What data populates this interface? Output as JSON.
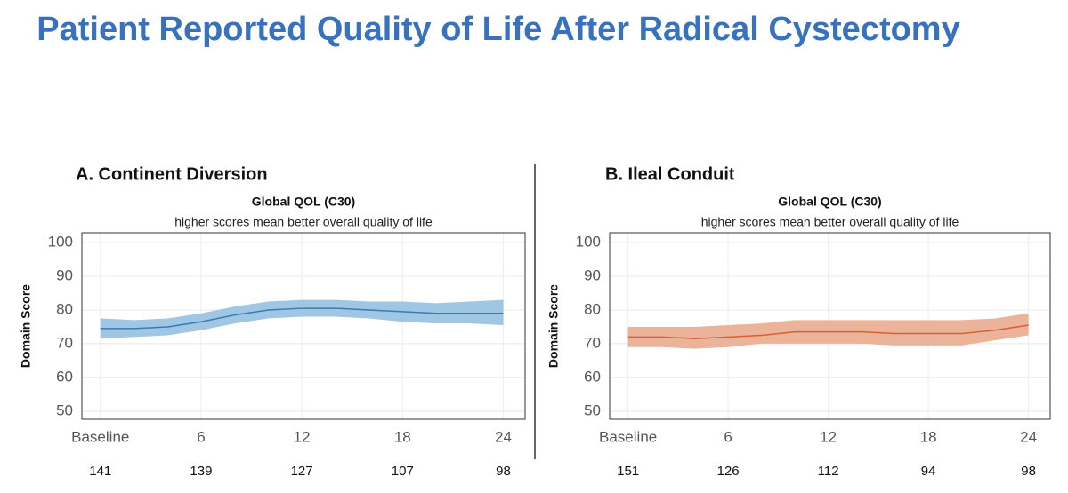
{
  "title": "Patient Reported Quality of Life After Radical Cystectomy",
  "chart_data": [
    {
      "type": "line",
      "panel_title": "A. Continent Diversion",
      "title": "Global QOL (C30)",
      "subtitle": "higher scores mean better overall quality of life",
      "ylabel": "Domain Score",
      "x": [
        0,
        2,
        4,
        6,
        8,
        10,
        12,
        14,
        16,
        18,
        20,
        22,
        24
      ],
      "series": [
        {
          "color": "#3b7bb5",
          "band_color": "#9fc6e3",
          "values": [
            74.5,
            74.5,
            75,
            76.5,
            78.5,
            80,
            80.5,
            80.5,
            80,
            79.5,
            79,
            79,
            79
          ],
          "lower": [
            71.5,
            72,
            72.5,
            74,
            76,
            77.5,
            78,
            78,
            77.5,
            76.5,
            76,
            76,
            75.5
          ],
          "upper": [
            77.5,
            77,
            77.5,
            79,
            81,
            82.5,
            83,
            83,
            82.5,
            82.5,
            82,
            82.5,
            83
          ]
        }
      ],
      "xlim": [
        -1.1,
        25.3
      ],
      "xticks": [
        {
          "value": 0,
          "label": "Baseline"
        },
        6,
        12,
        18,
        24
      ],
      "ylim": [
        47.6,
        102.9
      ],
      "yticks": [
        50,
        60,
        70,
        80,
        90,
        100
      ],
      "at_risk": [
        141,
        139,
        127,
        107,
        98
      ],
      "grid": true
    },
    {
      "type": "line",
      "panel_title": "B. Ileal Conduit",
      "title": "Global QOL (C30)",
      "subtitle": "higher scores mean better overall quality of life",
      "ylabel": "Domain Score",
      "x": [
        0,
        2,
        4,
        6,
        8,
        10,
        12,
        14,
        16,
        18,
        20,
        22,
        24
      ],
      "series": [
        {
          "color": "#d9602f",
          "band_color": "#eab39a",
          "values": [
            72,
            72,
            71.5,
            72,
            72.5,
            73.5,
            73.5,
            73.5,
            73,
            73,
            73,
            74,
            75.5
          ],
          "lower": [
            69,
            69,
            68.5,
            69,
            70,
            70,
            70,
            70,
            69.5,
            69.5,
            69.5,
            71,
            72.5
          ],
          "upper": [
            75,
            75,
            75,
            75.5,
            76,
            77,
            77,
            77,
            77,
            77,
            77,
            77.5,
            79
          ]
        }
      ],
      "xlim": [
        -1.1,
        25.3
      ],
      "xticks": [
        {
          "value": 0,
          "label": "Baseline"
        },
        6,
        12,
        18,
        24
      ],
      "ylim": [
        47.6,
        102.9
      ],
      "yticks": [
        50,
        60,
        70,
        80,
        90,
        100
      ],
      "at_risk": [
        151,
        126,
        112,
        94,
        98
      ],
      "grid": true
    }
  ]
}
